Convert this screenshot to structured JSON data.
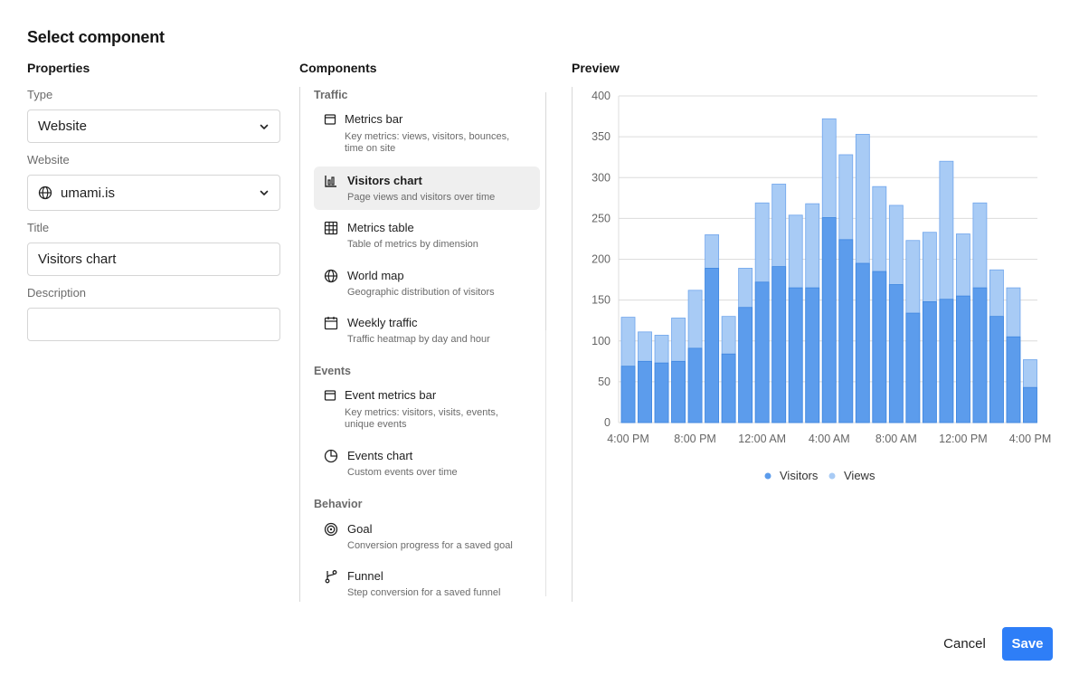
{
  "dialog": {
    "title": "Select component"
  },
  "properties": {
    "heading": "Properties",
    "type_label": "Type",
    "type_value": "Website",
    "website_label": "Website",
    "website_value": "umami.is",
    "title_label": "Title",
    "title_value": "Visitors chart",
    "description_label": "Description",
    "description_value": ""
  },
  "components": {
    "heading": "Components",
    "groups": [
      {
        "label": "Traffic",
        "items": [
          {
            "name": "Metrics bar",
            "description": "Key metrics: views, visitors, bounces, time on site",
            "icon": "metrics-bar-icon"
          },
          {
            "name": "Visitors chart",
            "description": "Page views and visitors over time",
            "icon": "bar-chart-icon",
            "selected": true
          },
          {
            "name": "Metrics table",
            "description": "Table of metrics by dimension",
            "icon": "table-icon"
          },
          {
            "name": "World map",
            "description": "Geographic distribution of visitors",
            "icon": "globe-icon"
          },
          {
            "name": "Weekly traffic",
            "description": "Traffic heatmap by day and hour",
            "icon": "calendar-icon"
          }
        ]
      },
      {
        "label": "Events",
        "items": [
          {
            "name": "Event metrics bar",
            "description": "Key metrics: visitors, visits, events, unique events",
            "icon": "metrics-bar-icon"
          },
          {
            "name": "Events chart",
            "description": "Custom events over time",
            "icon": "pie-chart-icon"
          }
        ]
      },
      {
        "label": "Behavior",
        "items": [
          {
            "name": "Goal",
            "description": "Conversion progress for a saved goal",
            "icon": "target-icon"
          },
          {
            "name": "Funnel",
            "description": "Step conversion for a saved funnel",
            "icon": "funnel-branch-icon"
          }
        ]
      }
    ]
  },
  "preview": {
    "heading": "Preview"
  },
  "chart_data": {
    "type": "bar",
    "stacked": false,
    "overlapped": true,
    "x_tick_labels": [
      "4:00 PM",
      "8:00 PM",
      "12:00 AM",
      "4:00 AM",
      "8:00 AM",
      "12:00 PM",
      "4:00 PM"
    ],
    "series": [
      {
        "name": "Visitors",
        "color": "#5c9cec",
        "values": [
          69,
          75,
          73,
          75,
          91,
          189,
          84,
          141,
          172,
          191,
          165,
          165,
          251,
          224,
          195,
          185,
          169,
          134,
          148,
          151,
          155,
          165,
          130,
          105,
          43
        ]
      },
      {
        "name": "Views",
        "color": "#a8cbf5",
        "values": [
          129,
          111,
          107,
          128,
          162,
          230,
          130,
          189,
          269,
          292,
          254,
          268,
          372,
          328,
          353,
          289,
          266,
          223,
          233,
          320,
          231,
          269,
          187,
          165,
          77
        ]
      }
    ],
    "ylim": [
      0,
      400
    ],
    "y_ticks": [
      0,
      50,
      100,
      150,
      200,
      250,
      300,
      350,
      400
    ],
    "grid": true,
    "legend_position": "bottom-center"
  },
  "actions": {
    "cancel_label": "Cancel",
    "save_label": "Save"
  }
}
